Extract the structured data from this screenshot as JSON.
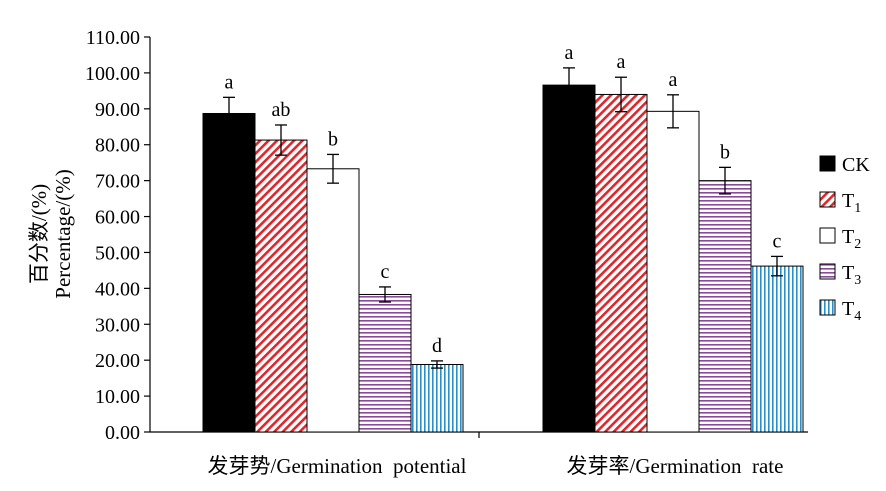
{
  "chart_data": {
    "type": "bar",
    "categories": [
      "发芽势/Germination  potential",
      "发芽率/Germination  rate"
    ],
    "ylabel_cn": "百分数/(%)",
    "ylabel_en": "Percentage/(%)",
    "ylim": [
      0,
      110
    ],
    "yticks": [
      "0.00",
      "10.00",
      "20.00",
      "30.00",
      "40.00",
      "50.00",
      "60.00",
      "70.00",
      "80.00",
      "90.00",
      "100.00",
      "110.00"
    ],
    "legend_position": "right",
    "grid": false,
    "series": [
      {
        "name": "CK",
        "subscript": "",
        "values": [
          88.7,
          96.6
        ],
        "errors": [
          4.5,
          4.8
        ],
        "letters": [
          "a",
          "a"
        ],
        "color": "#000000",
        "pattern": "solid"
      },
      {
        "name": "T",
        "subscript": "1",
        "values": [
          81.3,
          94.0
        ],
        "errors": [
          4.2,
          4.8
        ],
        "letters": [
          "ab",
          "a"
        ],
        "color": "#e0262b",
        "pattern": "diagonal"
      },
      {
        "name": "T",
        "subscript": "2",
        "values": [
          73.3,
          89.3
        ],
        "errors": [
          4.0,
          4.6
        ],
        "letters": [
          "b",
          "a"
        ],
        "color": "#000000",
        "pattern": "white"
      },
      {
        "name": "T",
        "subscript": "3",
        "values": [
          38.3,
          70.0
        ],
        "errors": [
          2.1,
          3.7
        ],
        "letters": [
          "c",
          "b"
        ],
        "color": "#8a4a9a",
        "pattern": "horizontal"
      },
      {
        "name": "T",
        "subscript": "4",
        "values": [
          18.8,
          46.2
        ],
        "errors": [
          1.0,
          2.7
        ],
        "letters": [
          "d",
          "c"
        ],
        "color": "#2a8fc8",
        "pattern": "vertical"
      }
    ]
  }
}
